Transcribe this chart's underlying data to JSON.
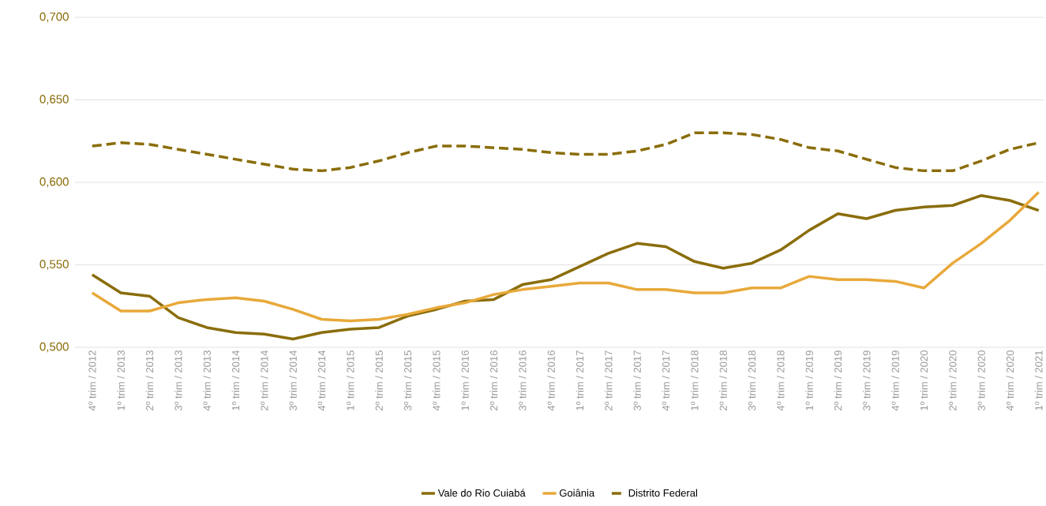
{
  "chart_data": {
    "type": "line",
    "categories": [
      "4º trim / 2012",
      "1º trim / 2013",
      "2º trim / 2013",
      "3º trim / 2013",
      "4º trim / 2013",
      "1º trim / 2014",
      "2º trim / 2014",
      "3º trim / 2014",
      "4º trim / 2014",
      "1º trim / 2015",
      "2º trim / 2015",
      "3º trim / 2015",
      "4º trim / 2015",
      "1º trim / 2016",
      "2º trim / 2016",
      "3º trim / 2016",
      "4º trim / 2016",
      "1º trim / 2017",
      "2º trim / 2017",
      "3º trim / 2017",
      "4º trim / 2017",
      "1º trim / 2018",
      "2º trim / 2018",
      "3º trim / 2018",
      "4º trim / 2018",
      "1º trim / 2019",
      "2º trim / 2019",
      "3º trim / 2019",
      "4º trim / 2019",
      "1º trim / 2020",
      "2º trim / 2020",
      "3º trim / 2020",
      "4º trim / 2020",
      "1º trim / 2021"
    ],
    "series": [
      {
        "name": "Vale do Rio Cuiabá",
        "color": "#8a6d0b",
        "line_style": "solid",
        "values": [
          0.544,
          0.533,
          0.531,
          0.518,
          0.512,
          0.509,
          0.508,
          0.505,
          0.509,
          0.511,
          0.512,
          0.519,
          0.523,
          0.528,
          0.529,
          0.538,
          0.541,
          0.549,
          0.557,
          0.563,
          0.561,
          0.552,
          0.548,
          0.551,
          0.559,
          0.571,
          0.581,
          0.578,
          0.583,
          0.585,
          0.586,
          0.592,
          0.589,
          0.583
        ]
      },
      {
        "name": "Goiânia",
        "color": "#e8a93a",
        "line_style": "solid",
        "values": [
          0.533,
          0.522,
          0.522,
          0.527,
          0.529,
          0.53,
          0.528,
          0.523,
          0.517,
          0.516,
          0.517,
          0.52,
          0.524,
          0.527,
          0.532,
          0.535,
          0.537,
          0.539,
          0.539,
          0.535,
          0.535,
          0.533,
          0.533,
          0.536,
          0.536,
          0.543,
          0.541,
          0.541,
          0.54,
          0.536,
          0.551,
          0.563,
          0.577,
          0.594
        ]
      },
      {
        "name": "Distrito Federal",
        "color": "#8a6d0b",
        "line_style": "dashed",
        "values": [
          0.622,
          0.624,
          0.623,
          0.62,
          0.617,
          0.614,
          0.611,
          0.608,
          0.607,
          0.609,
          0.613,
          0.618,
          0.622,
          0.622,
          0.621,
          0.62,
          0.618,
          0.617,
          0.617,
          0.619,
          0.623,
          0.63,
          0.63,
          0.629,
          0.626,
          0.621,
          0.619,
          0.614,
          0.609,
          0.607,
          0.607,
          0.613,
          0.62,
          0.624
        ]
      }
    ],
    "ylim": [
      0.5,
      0.7
    ],
    "yticks": [
      {
        "value": 0.5,
        "label": "0,500"
      },
      {
        "value": 0.55,
        "label": "0,550"
      },
      {
        "value": 0.6,
        "label": "0,600"
      },
      {
        "value": 0.65,
        "label": "0,650"
      },
      {
        "value": 0.7,
        "label": "0,700"
      }
    ],
    "grid": "y",
    "legend": "bottom",
    "marker": "none"
  }
}
